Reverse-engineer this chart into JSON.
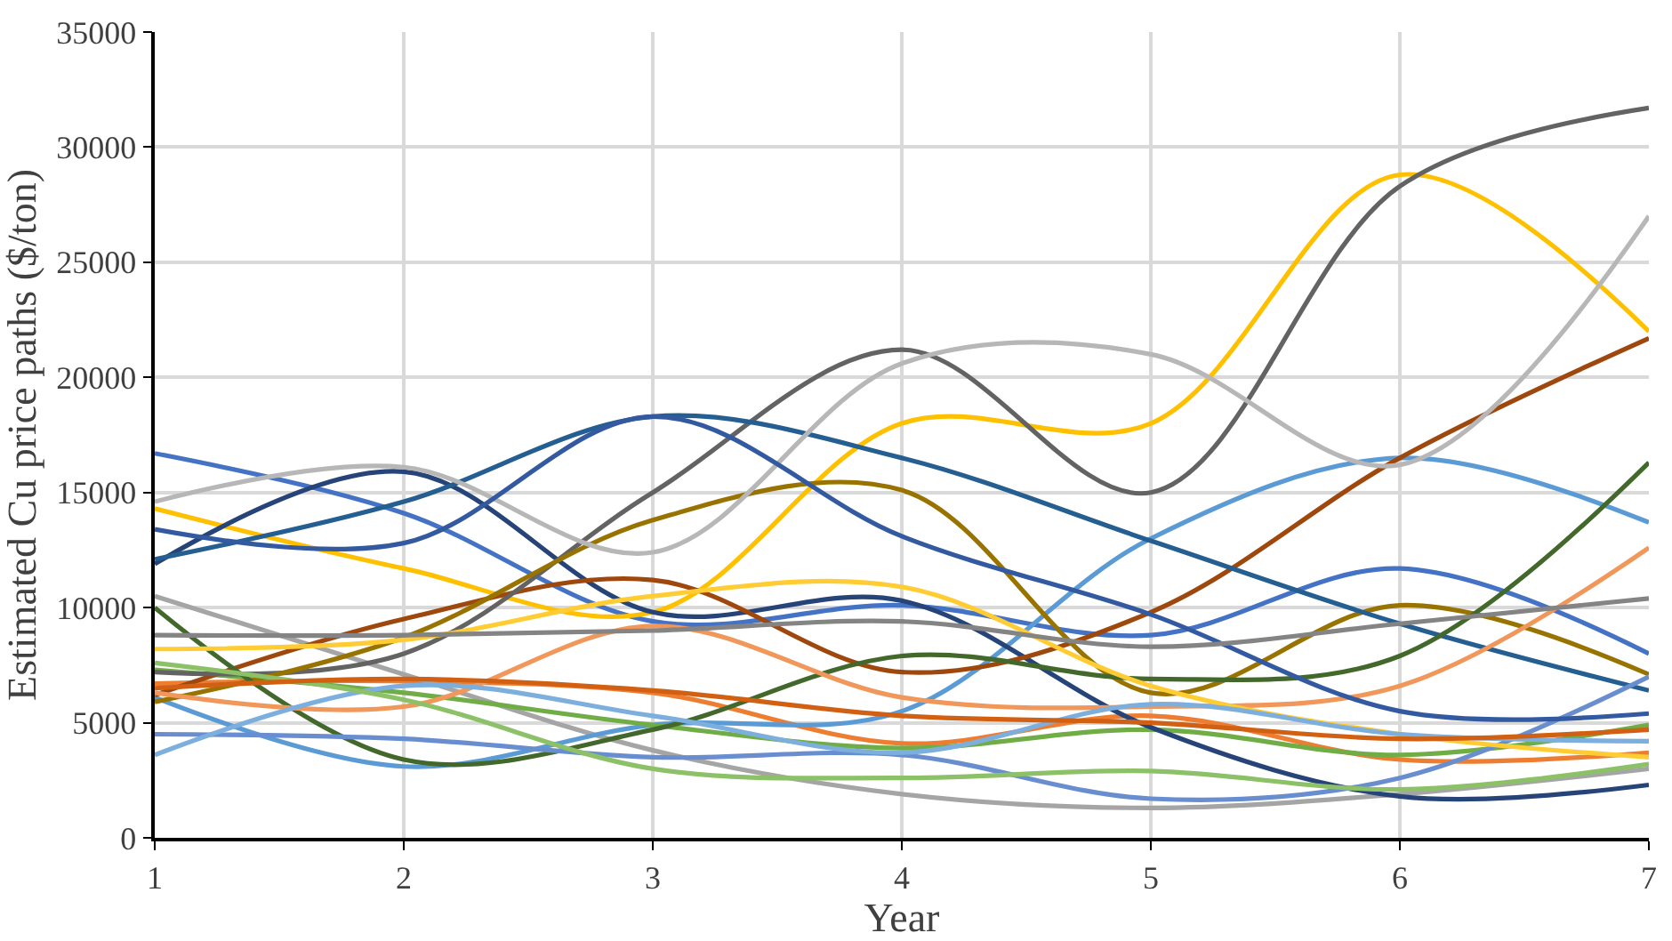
{
  "chart_data": {
    "type": "line",
    "xlabel": "Year",
    "ylabel": "Estimated Cu price paths ($/ton)",
    "x": [
      1,
      2,
      3,
      4,
      5,
      6,
      7
    ],
    "xlim": [
      1,
      7
    ],
    "xticks": [
      1,
      2,
      3,
      4,
      5,
      6,
      7
    ],
    "ylim": [
      0,
      35000
    ],
    "yticks": [
      0,
      5000,
      10000,
      15000,
      20000,
      25000,
      30000,
      35000
    ],
    "grid": true,
    "legend": false,
    "marker": "none",
    "line_style": "solid",
    "series": [
      {
        "color": "#4472c4",
        "values": [
          16700,
          14100,
          9400,
          10100,
          8800,
          11700,
          8000
        ]
      },
      {
        "color": "#ed7d31",
        "values": [
          6700,
          6800,
          6300,
          4100,
          5300,
          3400,
          3700
        ]
      },
      {
        "color": "#a5a5a5",
        "values": [
          10500,
          7100,
          3800,
          1900,
          1300,
          1900,
          3000
        ]
      },
      {
        "color": "#ffc000",
        "values": [
          14300,
          11700,
          9800,
          18000,
          18000,
          28800,
          22000
        ]
      },
      {
        "color": "#5b9bd5",
        "values": [
          6100,
          3100,
          4900,
          5500,
          13000,
          16500,
          13700
        ]
      },
      {
        "color": "#70ad47",
        "values": [
          7300,
          6300,
          4900,
          3900,
          4700,
          3600,
          4900
        ]
      },
      {
        "color": "#264478",
        "values": [
          11900,
          15900,
          9800,
          10300,
          4800,
          1800,
          2300
        ]
      },
      {
        "color": "#9e480e",
        "values": [
          6200,
          9500,
          11200,
          7200,
          9800,
          16500,
          21700
        ]
      },
      {
        "color": "#636363",
        "values": [
          7200,
          8000,
          15000,
          21200,
          15000,
          28300,
          31700
        ]
      },
      {
        "color": "#997300",
        "values": [
          5900,
          8700,
          13800,
          15100,
          6300,
          10100,
          7100
        ]
      },
      {
        "color": "#255e91",
        "values": [
          12100,
          14600,
          18300,
          16500,
          12900,
          9300,
          6400
        ]
      },
      {
        "color": "#43682b",
        "values": [
          10000,
          3400,
          4700,
          7900,
          6900,
          7900,
          16300
        ]
      },
      {
        "color": "#698ed0",
        "values": [
          4500,
          4300,
          3500,
          3600,
          1700,
          2600,
          7000
        ]
      },
      {
        "color": "#f1975a",
        "values": [
          6300,
          5700,
          9200,
          6100,
          5700,
          6600,
          12600
        ]
      },
      {
        "color": "#b7b7b7",
        "values": [
          14600,
          16100,
          12400,
          20600,
          21000,
          16200,
          27000
        ]
      },
      {
        "color": "#ffcd33",
        "values": [
          8200,
          8600,
          10500,
          10900,
          6600,
          4500,
          3500
        ]
      },
      {
        "color": "#7cafdd",
        "values": [
          3600,
          6600,
          5300,
          3700,
          5800,
          4500,
          4200
        ]
      },
      {
        "color": "#8cc168",
        "values": [
          7600,
          6000,
          3000,
          2600,
          2900,
          2100,
          3200
        ]
      },
      {
        "color": "#335aa1",
        "values": [
          13400,
          12800,
          18300,
          13100,
          9700,
          5500,
          5400
        ]
      },
      {
        "color": "#d26012",
        "values": [
          6500,
          6900,
          6400,
          5300,
          5000,
          4300,
          4700
        ]
      },
      {
        "color": "#848484",
        "values": [
          8800,
          8800,
          9000,
          9400,
          8300,
          9300,
          10400
        ]
      }
    ]
  }
}
